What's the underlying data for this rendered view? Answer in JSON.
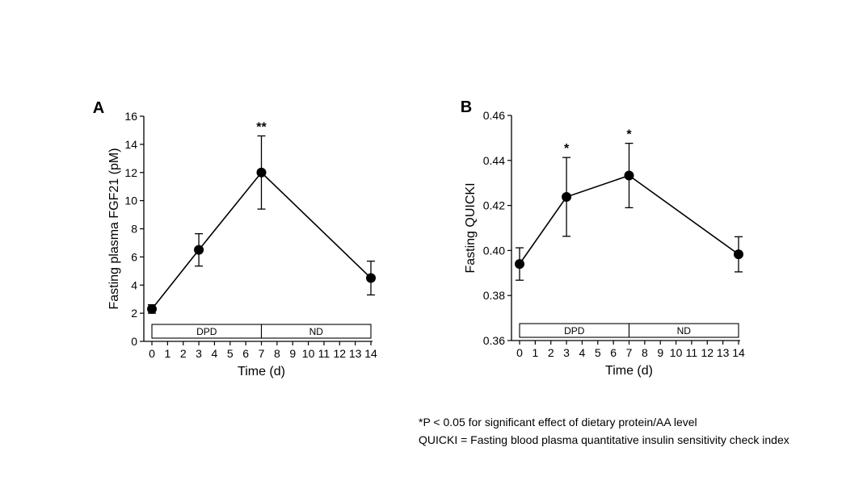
{
  "chart_data": [
    {
      "type": "line",
      "panel_label": "A",
      "title": "",
      "xlabel": "Time (d)",
      "ylabel": "Fasting plasma FGF21 (pM)",
      "xlim": [
        0,
        14
      ],
      "ylim": [
        0,
        16
      ],
      "x_ticks": [
        0,
        1,
        2,
        3,
        4,
        5,
        6,
        7,
        8,
        9,
        10,
        11,
        12,
        13,
        14
      ],
      "y_ticks": [
        0,
        2,
        4,
        6,
        8,
        10,
        12,
        14,
        16
      ],
      "grid": false,
      "series": [
        {
          "x": [
            0,
            3,
            7,
            14
          ],
          "y": [
            2.3,
            6.5,
            12.0,
            4.5
          ],
          "error": [
            0.3,
            1.15,
            2.6,
            1.2
          ],
          "color": "#000000"
        }
      ],
      "annotations": [
        {
          "x": 7,
          "text": "**"
        }
      ],
      "phase_bar": [
        {
          "label": "DPD",
          "from": 0,
          "to": 7
        },
        {
          "label": "ND",
          "from": 7,
          "to": 14
        }
      ]
    },
    {
      "type": "line",
      "panel_label": "B",
      "title": "",
      "xlabel": "Time (d)",
      "ylabel": "Fasting QUICKI",
      "xlim": [
        0,
        14
      ],
      "ylim": [
        0.36,
        0.46
      ],
      "x_ticks": [
        0,
        1,
        2,
        3,
        4,
        5,
        6,
        7,
        8,
        9,
        10,
        11,
        12,
        13,
        14
      ],
      "y_ticks": [
        0.36,
        0.38,
        0.4,
        0.42,
        0.44,
        0.46
      ],
      "y_tick_labels": [
        "0.36",
        "0.38",
        "0.40",
        "0.42",
        "0.44",
        "0.46"
      ],
      "grid": false,
      "series": [
        {
          "x": [
            0,
            3,
            7,
            14
          ],
          "y": [
            0.394,
            0.4238,
            0.4333,
            0.3983
          ],
          "error": [
            0.0072,
            0.0175,
            0.0143,
            0.0078
          ],
          "color": "#000000"
        }
      ],
      "annotations": [
        {
          "x": 3,
          "text": "*"
        },
        {
          "x": 7,
          "text": "*"
        }
      ],
      "phase_bar": [
        {
          "label": "DPD",
          "from": 0,
          "to": 7
        },
        {
          "label": "ND",
          "from": 7,
          "to": 14
        }
      ]
    }
  ],
  "footnotes": [
    "*P < 0.05 for significant effect of dietary protein/AA level",
    "QUICKI = Fasting blood plasma quantitative insulin sensitivity check index"
  ]
}
